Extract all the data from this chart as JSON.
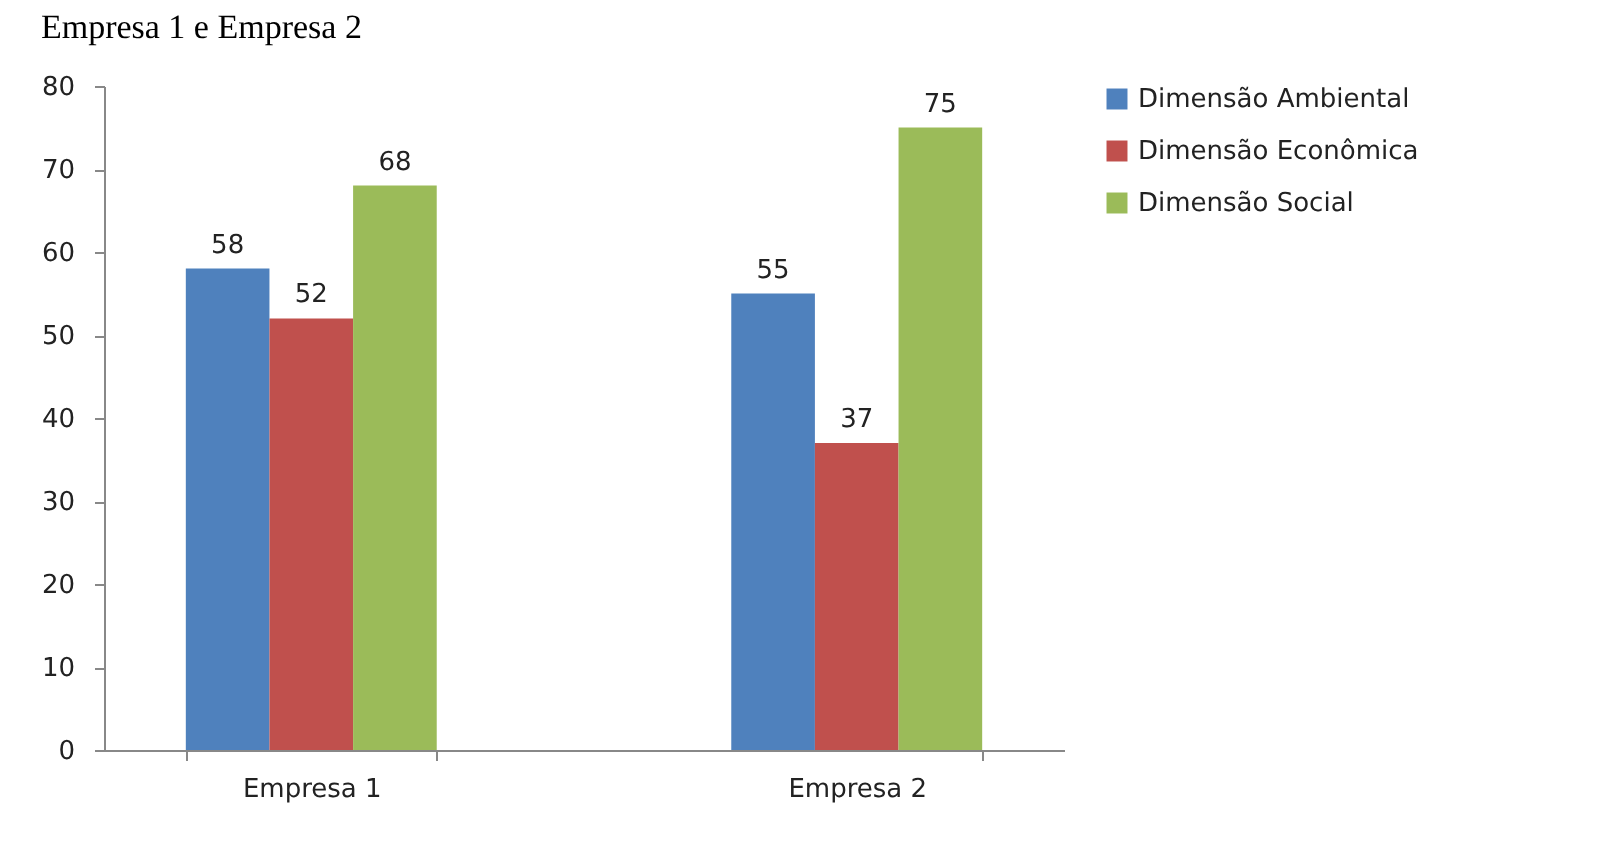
{
  "chart_data": {
    "type": "bar",
    "title": "Empresa 1 e Empresa 2",
    "categories": [
      "Empresa 1",
      "Empresa 2"
    ],
    "series": [
      {
        "name": "Dimensão Ambiental",
        "color": "#4f81bd",
        "values": [
          58,
          55
        ]
      },
      {
        "name": "Dimensão Econômica",
        "color": "#c0504d",
        "values": [
          52,
          37
        ]
      },
      {
        "name": "Dimensão Social",
        "color": "#9bbb59",
        "values": [
          68,
          75
        ]
      }
    ],
    "ylim": [
      0,
      80
    ],
    "yticks": [
      0,
      10,
      20,
      30,
      40,
      50,
      60,
      70,
      80
    ],
    "grid": false,
    "legend": "right",
    "data_labels": true
  }
}
